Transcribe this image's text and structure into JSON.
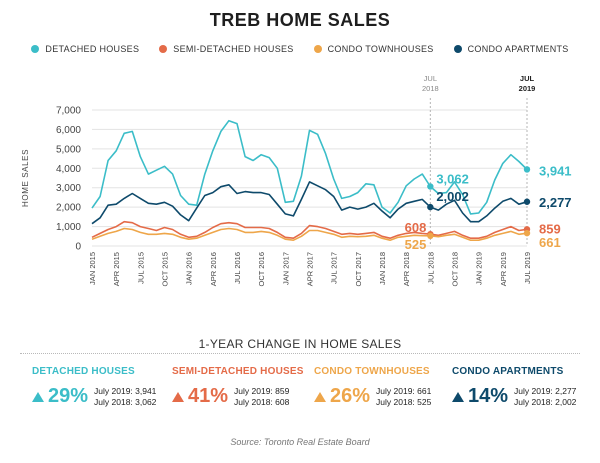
{
  "title": "TREB HOME SALES",
  "colors": {
    "detached": "#3bbdc8",
    "semi": "#e46b48",
    "townhouse": "#eea64a",
    "apartment": "#0e4a6b"
  },
  "legend": [
    {
      "label": "DETACHED HOUSES",
      "color": "#3bbdc8"
    },
    {
      "label": "SEMI-DETACHED HOUSES",
      "color": "#e46b48"
    },
    {
      "label": "CONDO TOWNHOUSES",
      "color": "#eea64a"
    },
    {
      "label": "CONDO APARTMENTS",
      "color": "#0e4a6b"
    }
  ],
  "chart_data": {
    "type": "line",
    "ylabel": "HOME SALES",
    "ylim": [
      0,
      7000
    ],
    "yticks": [
      "0",
      "1,000",
      "2,000",
      "3,000",
      "4,000",
      "5,000",
      "6,000",
      "7,000"
    ],
    "x_start": "JAN 2015",
    "xtick_labels": [
      "JAN 2015",
      "APR 2015",
      "JUL 2015",
      "OCT 2015",
      "JAN 2016",
      "APR 2016",
      "JUL 2016",
      "OCT 2016",
      "JAN 2017",
      "APR 2017",
      "JUL 2017",
      "OCT 2017",
      "JAN 2018",
      "APR 2018",
      "JUL 2018",
      "OCT 2018",
      "JAN 2019",
      "APR 2019",
      "JUL 2019"
    ],
    "markers": [
      {
        "label_top": "JUL",
        "label_bottom": "2018",
        "index": 42
      },
      {
        "label_top": "JUL",
        "label_bottom": "2019",
        "index": 54
      }
    ],
    "series": [
      {
        "name": "DETACHED HOUSES",
        "key": "detached",
        "values": [
          1950,
          2550,
          4400,
          4900,
          5800,
          5900,
          4600,
          3700,
          3900,
          4100,
          3700,
          2600,
          2150,
          2100,
          3700,
          4900,
          5900,
          6450,
          6300,
          4600,
          4400,
          4700,
          4550,
          4000,
          2250,
          2300,
          3600,
          5950,
          5750,
          4750,
          3450,
          2450,
          2550,
          2750,
          3200,
          3150,
          2000,
          1700,
          2250,
          3100,
          3450,
          3700,
          3062,
          2700,
          2750,
          3300,
          2650,
          1650,
          1700,
          2250,
          3400,
          4250,
          4700,
          4350,
          3941
        ],
        "annot_jul2018": "3,062",
        "annot_jul2019": "3,941"
      },
      {
        "name": "CONDO APARTMENTS",
        "key": "apartment",
        "values": [
          1150,
          1450,
          2100,
          2150,
          2450,
          2700,
          2450,
          2200,
          2150,
          2250,
          2050,
          1600,
          1300,
          1950,
          2600,
          2750,
          3050,
          3150,
          2700,
          2800,
          2750,
          2750,
          2650,
          2150,
          1650,
          1550,
          2400,
          3300,
          3100,
          2900,
          2550,
          1850,
          2000,
          1900,
          2000,
          2200,
          1800,
          1450,
          1900,
          2200,
          2300,
          2400,
          2002,
          1850,
          2150,
          2350,
          1700,
          1250,
          1250,
          1550,
          1950,
          2300,
          2450,
          2150,
          2277
        ],
        "annot_jul2019": "2,277"
      },
      {
        "name": "SEMI-DETACHED HOUSES",
        "key": "semi",
        "values": [
          450,
          650,
          850,
          1000,
          1250,
          1200,
          1000,
          900,
          800,
          950,
          850,
          600,
          450,
          500,
          700,
          950,
          1150,
          1200,
          1150,
          950,
          950,
          950,
          900,
          700,
          450,
          400,
          650,
          1050,
          1000,
          900,
          750,
          600,
          650,
          600,
          650,
          700,
          500,
          400,
          550,
          650,
          700,
          650,
          608,
          550,
          650,
          750,
          550,
          400,
          400,
          500,
          700,
          850,
          1000,
          800,
          859
        ],
        "annot_jul2018": "608",
        "annot_jul2019": "859"
      },
      {
        "name": "CONDO TOWNHOUSES",
        "key": "townhouse",
        "values": [
          350,
          500,
          650,
          750,
          900,
          850,
          700,
          600,
          600,
          650,
          600,
          450,
          350,
          400,
          550,
          700,
          850,
          900,
          850,
          700,
          700,
          750,
          700,
          550,
          350,
          300,
          500,
          800,
          800,
          700,
          600,
          450,
          500,
          480,
          500,
          550,
          400,
          300,
          450,
          500,
          550,
          530,
          525,
          480,
          550,
          600,
          450,
          300,
          300,
          400,
          550,
          650,
          750,
          600,
          661
        ],
        "annot_jul2018": "525",
        "annot_jul2019": "661"
      }
    ],
    "annot_apartment_jul2018": "2,002"
  },
  "change_section": {
    "heading": "1-YEAR CHANGE IN HOME SALES",
    "stats": [
      {
        "name": "DETACHED HOUSES",
        "pct": "29%",
        "line1": "July 2019: 3,941",
        "line2": "July 2018: 3,062"
      },
      {
        "name": "SEMI-DETACHED HOUSES",
        "pct": "41%",
        "line1": "July 2019: 859",
        "line2": "July 2018: 608"
      },
      {
        "name": "CONDO TOWNHOUSES",
        "pct": "26%",
        "line1": "July 2019: 661",
        "line2": "July 2018: 525"
      },
      {
        "name": "CONDO APARTMENTS",
        "pct": "14%",
        "line1": "July 2019: 2,277",
        "line2": "July 2018: 2,002"
      }
    ]
  },
  "source": "Source: Toronto Real Estate Board"
}
